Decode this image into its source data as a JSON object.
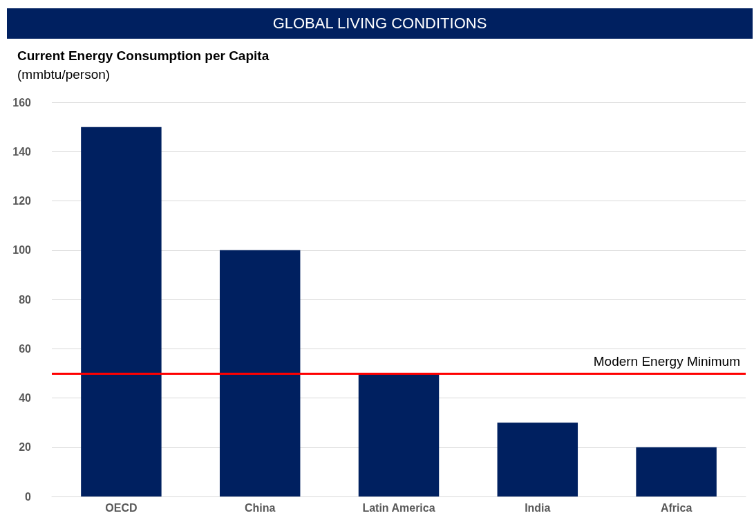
{
  "chart_data": {
    "type": "bar",
    "title": "GLOBAL LIVING CONDITIONS",
    "subtitle": "Current Energy Consumption per Capita",
    "ylabel": "(mmbtu/person)",
    "categories": [
      "OECD",
      "China",
      "Latin America",
      "India",
      "Africa"
    ],
    "values": [
      150,
      100,
      50,
      30,
      20
    ],
    "color": "#002060",
    "ylim": [
      0,
      160
    ],
    "yticks": [
      0,
      20,
      40,
      60,
      80,
      100,
      120,
      140,
      160
    ],
    "grid": "y",
    "ref_lines": [
      {
        "axis": "y",
        "value": 50,
        "label": "Modern Energy Minimum",
        "color": "#ff0000",
        "line_style": "solid"
      }
    ]
  }
}
